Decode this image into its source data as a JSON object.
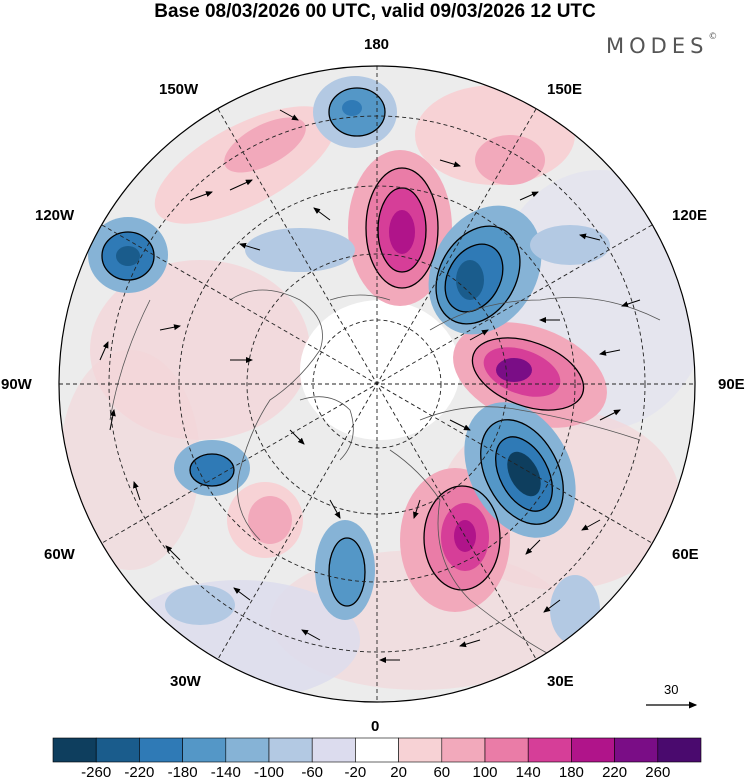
{
  "title": "Base 08/03/2026 00 UTC, valid 09/03/2026 12 UTC",
  "brand": {
    "name": "MODES",
    "mark": "©"
  },
  "map_labels": {
    "top": "180",
    "bottom": "0",
    "left": "90W",
    "right": "90E",
    "nw_upper": "150W",
    "nw_lower": "120W",
    "ne_upper": "150E",
    "ne_lower": "120E",
    "sw_upper": "60W",
    "sw_lower": "30W",
    "se_upper": "60E",
    "se_lower": "30E"
  },
  "vector_scale": {
    "value": "30"
  },
  "colorbar": {
    "ticks": [
      "-260",
      "-220",
      "-180",
      "-140",
      "-100",
      "-60",
      "-20",
      "20",
      "60",
      "100",
      "140",
      "180",
      "220",
      "260"
    ],
    "colors": [
      "#0e3e5e",
      "#1a5c8c",
      "#2f7ab6",
      "#5497c7",
      "#86b3d6",
      "#b3c9e3",
      "#dcdcee",
      "#ffffff",
      "#f7d2d5",
      "#f2a9bb",
      "#ea7ca7",
      "#d63e98",
      "#b0148a",
      "#7a0d86",
      "#4a0a6e"
    ]
  }
}
